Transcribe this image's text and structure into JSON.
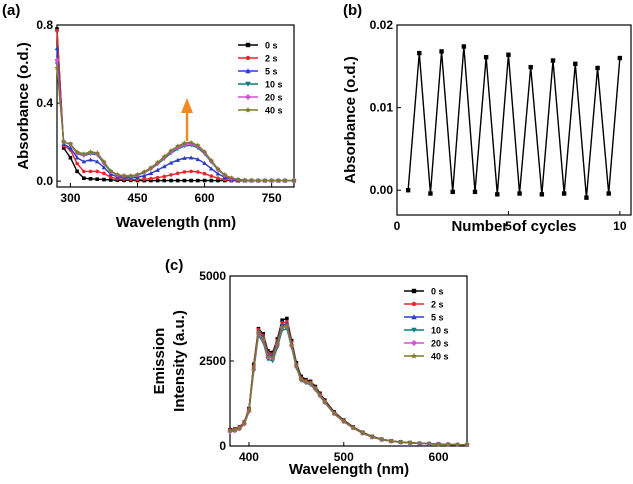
{
  "chart_data": [
    {
      "panel": "(a)",
      "type": "line",
      "xlabel": "Wavelength (nm)",
      "ylabel": "Absorbance (o.d.)",
      "xlim": [
        270,
        800
      ],
      "ylim": [
        -0.03,
        0.8
      ],
      "xticks": [
        300,
        450,
        600,
        750
      ],
      "yticks": [
        0.0,
        0.4,
        0.8
      ],
      "ytick_labels": [
        "0.0",
        "0.4",
        "0.8"
      ],
      "legend_position": "top-right",
      "annotation": "orange upward arrow near 560 nm",
      "x": [
        270,
        285,
        300,
        315,
        330,
        345,
        360,
        375,
        390,
        405,
        420,
        435,
        450,
        465,
        480,
        495,
        510,
        525,
        540,
        555,
        570,
        585,
        600,
        615,
        630,
        645,
        660,
        675,
        690,
        705,
        720,
        735,
        750,
        765,
        780,
        800
      ],
      "series": [
        {
          "name": "0 s",
          "color": "#000000",
          "marker": "square",
          "values": [
            0.78,
            0.17,
            0.12,
            0.05,
            0.015,
            0.012,
            0.01,
            0.008,
            0.006,
            0.005,
            0.004,
            0.004,
            0.003,
            0.003,
            0.003,
            0.003,
            0.003,
            0.003,
            0.003,
            0.003,
            0.003,
            0.003,
            0.003,
            0.003,
            0.003,
            0.003,
            0.003,
            0.002,
            0.002,
            0.002,
            0.002,
            0.002,
            0.002,
            0.002,
            0.002,
            0.002
          ]
        },
        {
          "name": "2 s",
          "color": "#e8262b",
          "marker": "circle",
          "values": [
            0.77,
            0.18,
            0.16,
            0.09,
            0.05,
            0.05,
            0.05,
            0.04,
            0.02,
            0.012,
            0.01,
            0.008,
            0.008,
            0.01,
            0.013,
            0.018,
            0.024,
            0.032,
            0.04,
            0.047,
            0.05,
            0.047,
            0.038,
            0.026,
            0.015,
            0.008,
            0.004,
            0.003,
            0.002,
            0.002,
            0.002,
            0.002,
            0.002,
            0.002,
            0.002,
            0.002
          ]
        },
        {
          "name": "5 s",
          "color": "#2b3dc4",
          "marker": "triangle",
          "values": [
            0.68,
            0.19,
            0.17,
            0.12,
            0.1,
            0.11,
            0.1,
            0.07,
            0.035,
            0.022,
            0.018,
            0.017,
            0.02,
            0.028,
            0.04,
            0.057,
            0.075,
            0.094,
            0.108,
            0.118,
            0.12,
            0.112,
            0.092,
            0.064,
            0.038,
            0.02,
            0.01,
            0.005,
            0.003,
            0.002,
            0.002,
            0.002,
            0.002,
            0.002,
            0.002,
            0.002
          ]
        },
        {
          "name": "10 s",
          "color": "#0f7f79",
          "marker": "triangle-down",
          "values": [
            0.6,
            0.2,
            0.19,
            0.14,
            0.13,
            0.14,
            0.135,
            0.09,
            0.048,
            0.03,
            0.025,
            0.024,
            0.03,
            0.043,
            0.062,
            0.087,
            0.115,
            0.143,
            0.165,
            0.18,
            0.184,
            0.17,
            0.14,
            0.098,
            0.058,
            0.03,
            0.014,
            0.007,
            0.004,
            0.003,
            0.003,
            0.003,
            0.003,
            0.003,
            0.003,
            0.003
          ]
        },
        {
          "name": "20 s",
          "color": "#d84fd0",
          "marker": "diamond",
          "values": [
            0.62,
            0.2,
            0.19,
            0.145,
            0.135,
            0.145,
            0.14,
            0.095,
            0.05,
            0.032,
            0.027,
            0.026,
            0.032,
            0.046,
            0.066,
            0.092,
            0.121,
            0.15,
            0.173,
            0.188,
            0.192,
            0.178,
            0.146,
            0.102,
            0.06,
            0.031,
            0.015,
            0.008,
            0.005,
            0.004,
            0.003,
            0.003,
            0.003,
            0.003,
            0.003,
            0.003
          ]
        },
        {
          "name": "40 s",
          "color": "#7e7a2a",
          "marker": "star",
          "values": [
            0.58,
            0.2,
            0.19,
            0.15,
            0.14,
            0.15,
            0.145,
            0.1,
            0.052,
            0.034,
            0.028,
            0.027,
            0.034,
            0.048,
            0.069,
            0.096,
            0.126,
            0.156,
            0.18,
            0.195,
            0.198,
            0.184,
            0.151,
            0.106,
            0.063,
            0.033,
            0.016,
            0.008,
            0.005,
            0.004,
            0.003,
            0.003,
            0.003,
            0.003,
            0.003,
            0.003
          ]
        }
      ]
    },
    {
      "panel": "(b)",
      "type": "line",
      "xlabel": "Number of cycles",
      "ylabel": "Absorbance (o.d.)",
      "xlim": [
        0,
        10.5
      ],
      "ylim": [
        -0.003,
        0.02
      ],
      "xticks": [
        0,
        5,
        10
      ],
      "yticks": [
        0.0,
        0.01,
        0.02
      ],
      "ytick_labels": [
        "0.00",
        "0.01",
        "0.02"
      ],
      "x": [
        0.5,
        1,
        1.5,
        2,
        2.5,
        3,
        3.5,
        4,
        4.5,
        5,
        5.5,
        6,
        6.5,
        7,
        7.5,
        8,
        8.5,
        9,
        9.5,
        10
      ],
      "series": [
        {
          "color": "#000000",
          "marker": "square",
          "values": [
            0.0,
            0.0166,
            -0.0004,
            0.0168,
            -0.0002,
            0.0174,
            -0.0002,
            0.0161,
            -0.0005,
            0.0164,
            -0.0004,
            0.0149,
            -0.0005,
            0.0157,
            -0.0004,
            0.0153,
            -0.0009,
            0.0148,
            -0.0004,
            0.016
          ]
        }
      ]
    },
    {
      "panel": "(c)",
      "type": "line",
      "xlabel": "Wavelength (nm)",
      "ylabel": "Emission Intensity (a.u.)",
      "ylabel_lines": [
        "Emission",
        "Intensity (a.u.)"
      ],
      "xlim": [
        380,
        630
      ],
      "ylim": [
        0,
        5000
      ],
      "xticks": [
        400,
        500,
        600
      ],
      "yticks": [
        0,
        2500,
        5000
      ],
      "ytick_labels": [
        "0",
        "2500",
        "5000"
      ],
      "legend_position": "top-right",
      "x": [
        380,
        385,
        390,
        395,
        400,
        405,
        410,
        415,
        420,
        425,
        430,
        435,
        440,
        445,
        450,
        455,
        460,
        465,
        470,
        475,
        480,
        490,
        500,
        510,
        520,
        530,
        540,
        550,
        560,
        570,
        580,
        590,
        600,
        610,
        620,
        630
      ],
      "series": [
        {
          "name": "0 s",
          "color": "#000000",
          "marker": "square",
          "values": [
            480,
            500,
            560,
            700,
            1100,
            2400,
            3450,
            3300,
            2800,
            2750,
            3150,
            3700,
            3750,
            3100,
            2450,
            2050,
            1950,
            1900,
            1750,
            1550,
            1350,
            1000,
            760,
            560,
            400,
            280,
            200,
            150,
            120,
            100,
            80,
            70,
            60,
            50,
            40,
            40
          ]
        },
        {
          "name": "2 s",
          "color": "#e8262b",
          "marker": "circle",
          "values": [
            470,
            490,
            550,
            690,
            1080,
            2350,
            3420,
            3250,
            2750,
            2700,
            3100,
            3620,
            3650,
            3050,
            2400,
            2000,
            1920,
            1870,
            1720,
            1520,
            1320,
            980,
            740,
            550,
            390,
            270,
            195,
            145,
            115,
            95,
            78,
            68,
            58,
            48,
            38,
            38
          ]
        },
        {
          "name": "5 s",
          "color": "#2b3dc4",
          "marker": "triangle",
          "values": [
            450,
            470,
            530,
            670,
            1050,
            2300,
            3380,
            3200,
            2700,
            2650,
            3050,
            3550,
            3600,
            3000,
            2380,
            1980,
            1900,
            1850,
            1700,
            1500,
            1300,
            960,
            730,
            540,
            380,
            265,
            190,
            142,
            112,
            92,
            76,
            66,
            56,
            46,
            36,
            36
          ]
        },
        {
          "name": "10 s",
          "color": "#0f7f79",
          "marker": "triangle-down",
          "values": [
            420,
            440,
            500,
            640,
            1000,
            2200,
            3250,
            3050,
            2550,
            2500,
            2900,
            3400,
            3450,
            2900,
            2300,
            1920,
            1850,
            1800,
            1650,
            1460,
            1270,
            940,
            710,
            525,
            370,
            258,
            185,
            138,
            108,
            90,
            74,
            64,
            54,
            44,
            35,
            35
          ]
        },
        {
          "name": "20 s",
          "color": "#d84fd0",
          "marker": "diamond",
          "values": [
            430,
            450,
            510,
            650,
            1020,
            2250,
            3300,
            3120,
            2620,
            2580,
            2980,
            3480,
            3520,
            2950,
            2340,
            1950,
            1880,
            1830,
            1680,
            1480,
            1290,
            950,
            720,
            532,
            375,
            262,
            188,
            140,
            110,
            91,
            75,
            65,
            55,
            45,
            36,
            36
          ]
        },
        {
          "name": "40 s",
          "color": "#7e7a2a",
          "marker": "star",
          "values": [
            440,
            460,
            520,
            660,
            1040,
            2280,
            3350,
            3150,
            2650,
            2600,
            3000,
            3500,
            3550,
            2970,
            2360,
            1960,
            1890,
            1840,
            1690,
            1490,
            1295,
            955,
            725,
            535,
            378,
            264,
            189,
            141,
            111,
            91,
            75,
            65,
            55,
            45,
            36,
            36
          ]
        }
      ]
    }
  ]
}
